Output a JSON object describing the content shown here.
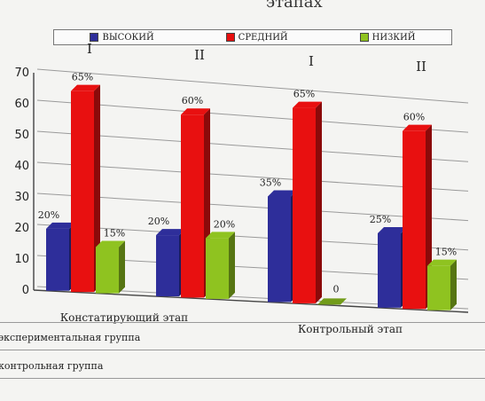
{
  "chart_data": {
    "type": "bar",
    "title_partial": "этапах",
    "legend": [
      {
        "name": "ВЫСОКИЙ",
        "color": "#2e2e9a"
      },
      {
        "name": "СРЕДНИЙ",
        "color": "#e81010"
      },
      {
        "name": "НИЗКИЙ",
        "color": "#8fc320"
      }
    ],
    "group_labels": [
      "I",
      "II",
      "I",
      "II"
    ],
    "stages": [
      "Констатирующий этап",
      "Контрольный этап"
    ],
    "ylim": [
      0,
      70
    ],
    "yticks": [
      0,
      10,
      20,
      30,
      40,
      50,
      60,
      70
    ],
    "series": [
      {
        "name": "ВЫСОКИЙ",
        "values": [
          20,
          20,
          35,
          25
        ],
        "labels": [
          "20%",
          "20%",
          "35%",
          "25%"
        ]
      },
      {
        "name": "СРЕДНИЙ",
        "values": [
          65,
          60,
          65,
          60
        ],
        "labels": [
          "65%",
          "60%",
          "65%",
          "60%"
        ]
      },
      {
        "name": "НИЗКИЙ",
        "values": [
          15,
          20,
          0,
          15
        ],
        "labels": [
          "15%",
          "20%",
          "0",
          "15%"
        ]
      }
    ],
    "grid": true
  },
  "table_rows": [
    "экспериментальная группа",
    "контрольная группа"
  ]
}
